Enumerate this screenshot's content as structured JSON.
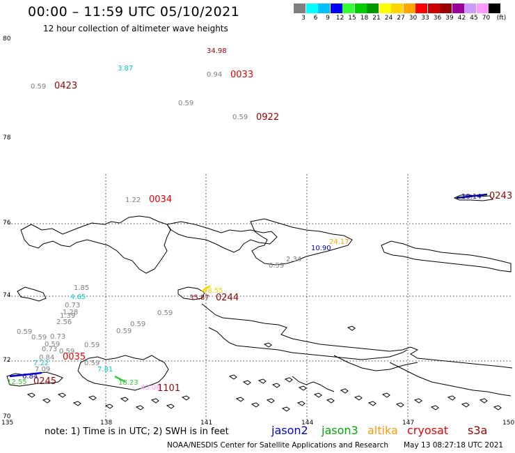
{
  "header": {
    "title": "00:00 – 11:59 UTC 05/10/2021",
    "subtitle": "12 hour collection of altimeter wave heights"
  },
  "color_scale": {
    "unit": "(ft)",
    "bins": [
      {
        "label": "3",
        "color": "#7f7f7f"
      },
      {
        "label": "6",
        "color": "#00ffff"
      },
      {
        "label": "9",
        "color": "#00bfff"
      },
      {
        "label": "12",
        "color": "#0000ff"
      },
      {
        "label": "15",
        "color": "#33ff33"
      },
      {
        "label": "18",
        "color": "#00cc00"
      },
      {
        "label": "21",
        "color": "#009900"
      },
      {
        "label": "24",
        "color": "#ffff00"
      },
      {
        "label": "27",
        "color": "#ffd700"
      },
      {
        "label": "30",
        "color": "#ffa500"
      },
      {
        "label": "33",
        "color": "#ff0000"
      },
      {
        "label": "36",
        "color": "#cc0000"
      },
      {
        "label": "39",
        "color": "#990000"
      },
      {
        "label": "42",
        "color": "#990099"
      },
      {
        "label": "45",
        "color": "#cc99ff"
      },
      {
        "label": "70",
        "color": "#ff99ff"
      },
      {
        "label": "",
        "color": "#000000"
      }
    ]
  },
  "axes": {
    "lat_labels": [
      "80",
      "78",
      "76",
      "74",
      "72",
      "70"
    ],
    "lon_labels": [
      "135",
      "138",
      "141",
      "144",
      "147",
      "150"
    ]
  },
  "observations": [
    {
      "text": "34.98",
      "color": "#990000"
    },
    {
      "text": "3.87",
      "color": "#00cccc"
    },
    {
      "text": "0.94",
      "color": "#7f7f7f"
    },
    {
      "text": "0033",
      "color": "#ee0000"
    },
    {
      "text": "0.59",
      "color": "#7f7f7f"
    },
    {
      "text": "0423",
      "color": "#990000"
    },
    {
      "text": "0.59",
      "color": "#7f7f7f"
    },
    {
      "text": "0.59",
      "color": "#7f7f7f"
    },
    {
      "text": "0922",
      "color": "#990000"
    },
    {
      "text": "1.22",
      "color": "#7f7f7f"
    },
    {
      "text": "0034",
      "color": "#ee0000"
    },
    {
      "text": "10.14",
      "color": "#0000cc"
    },
    {
      "text": "0243",
      "color": "#990000"
    },
    {
      "text": "24.17",
      "color": "#ffa500"
    },
    {
      "text": "10.90",
      "color": "#0000cc"
    },
    {
      "text": "2.34",
      "color": "#7f7f7f"
    },
    {
      "text": "0.59",
      "color": "#7f7f7f"
    },
    {
      "text": "1.85",
      "color": "#7f7f7f"
    },
    {
      "text": "4.65",
      "color": "#00cccc"
    },
    {
      "text": "0.73",
      "color": "#7f7f7f"
    },
    {
      "text": "1.28",
      "color": "#7f7f7f"
    },
    {
      "text": "1.39",
      "color": "#7f7f7f"
    },
    {
      "text": "2.56",
      "color": "#7f7f7f"
    },
    {
      "text": "28.55",
      "color": "#ffd700"
    },
    {
      "text": "35.87",
      "color": "#990000"
    },
    {
      "text": "0244",
      "color": "#990000"
    },
    {
      "text": "0.59",
      "color": "#7f7f7f"
    },
    {
      "text": "0.59",
      "color": "#7f7f7f"
    },
    {
      "text": "0.59",
      "color": "#7f7f7f"
    },
    {
      "text": "0.59",
      "color": "#7f7f7f"
    },
    {
      "text": "0.73",
      "color": "#7f7f7f"
    },
    {
      "text": "0.59",
      "color": "#7f7f7f"
    },
    {
      "text": "0.59",
      "color": "#7f7f7f"
    },
    {
      "text": "0.59",
      "color": "#7f7f7f"
    },
    {
      "text": "0.73",
      "color": "#7f7f7f"
    },
    {
      "text": "0.59",
      "color": "#7f7f7f"
    },
    {
      "text": "0.84",
      "color": "#7f7f7f"
    },
    {
      "text": "0035",
      "color": "#ee0000"
    },
    {
      "text": "0.59",
      "color": "#7f7f7f"
    },
    {
      "text": "7.22",
      "color": "#00cccc"
    },
    {
      "text": "7.09",
      "color": "#7f7f7f"
    },
    {
      "text": "7.81",
      "color": "#00cccc"
    },
    {
      "text": "6.84",
      "color": "#0000cc"
    },
    {
      "text": "12.55",
      "color": "#33cc33"
    },
    {
      "text": "0245",
      "color": "#990000"
    },
    {
      "text": "18.23",
      "color": "#33cc33"
    },
    {
      "text": "43.08",
      "color": "#ff99ff"
    },
    {
      "text": "1101",
      "color": "#990000"
    }
  ],
  "footer": {
    "note": "note: 1) Time is in UTC; 2) SWH is in feet",
    "legend": [
      {
        "name": "jason2",
        "color": "#0000dd"
      },
      {
        "name": "jason3",
        "color": "#00aa00"
      },
      {
        "name": "altika",
        "color": "#ff9900"
      },
      {
        "name": "cryosat",
        "color": "#ee0000"
      },
      {
        "name": "s3a",
        "color": "#990000"
      }
    ],
    "credit": "NOAA/NESDIS Center for Satellite Applications and Research",
    "timestamp": "May 13 08:27:18 UTC 2021"
  }
}
